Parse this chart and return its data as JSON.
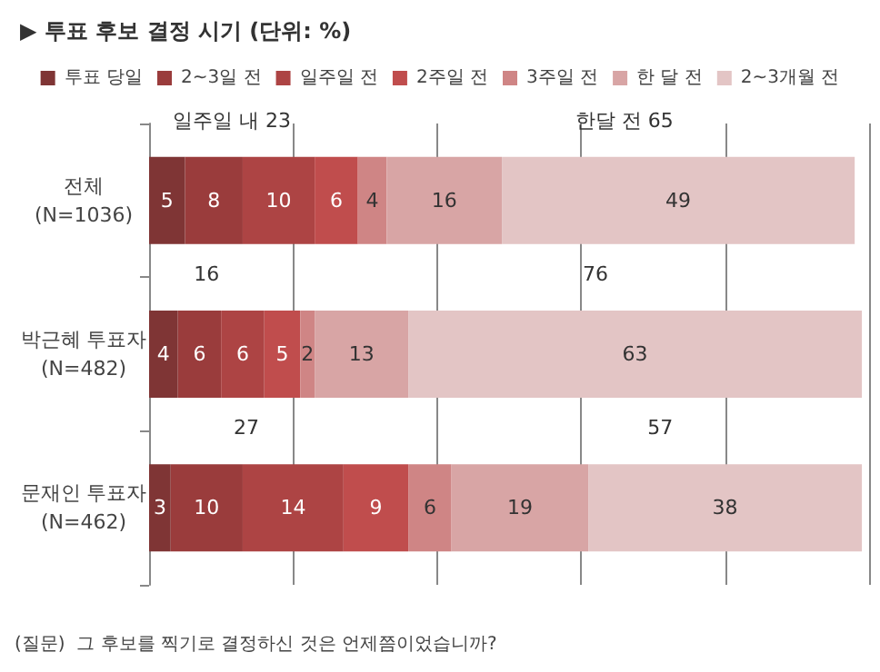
{
  "chart_data": {
    "type": "bar",
    "orientation": "horizontal",
    "stacked": true,
    "title": "▶ 투표 후보 결정 시기 (단위: %)",
    "categories": [
      "전체\n(N=1036)",
      "박근혜 투표자\n(N=482)",
      "문재인 투표자\n(N=462)"
    ],
    "series": [
      {
        "name": "투표 당일",
        "color": "#7f3535",
        "values": [
          5,
          4,
          3
        ]
      },
      {
        "name": "2~3일 전",
        "color": "#9a3c3c",
        "values": [
          8,
          6,
          10
        ]
      },
      {
        "name": "일주일 전",
        "color": "#ad4444",
        "values": [
          10,
          6,
          14
        ]
      },
      {
        "name": "2주일 전",
        "color": "#c04d4d",
        "values": [
          6,
          5,
          9
        ]
      },
      {
        "name": "3주일 전",
        "color": "#cf8585",
        "values": [
          4,
          2,
          6
        ]
      },
      {
        "name": "한 달 전",
        "color": "#d8a5a5",
        "values": [
          16,
          13,
          19
        ]
      },
      {
        "name": "2~3개월 전",
        "color": "#e3c5c5",
        "values": [
          49,
          63,
          38
        ]
      }
    ],
    "xlim": [
      0,
      100
    ],
    "xticks": [
      {
        "value": 0,
        "label": null
      },
      {
        "value": 20,
        "label": null
      },
      {
        "value": 40,
        "label": null
      },
      {
        "value": 60,
        "label": null
      },
      {
        "value": 80,
        "label": null
      },
      {
        "value": 100,
        "label": null
      }
    ],
    "tick_labels": "y",
    "grid": "x",
    "legend": "top",
    "data_labels": true,
    "annotations": [
      "일주일 내 23",
      "한달 전 65",
      "16",
      "76",
      "27",
      "57",
      "(질문)  그 후보를 찍기로 결정하신 것은 언제쯤이었습니까?"
    ]
  }
}
